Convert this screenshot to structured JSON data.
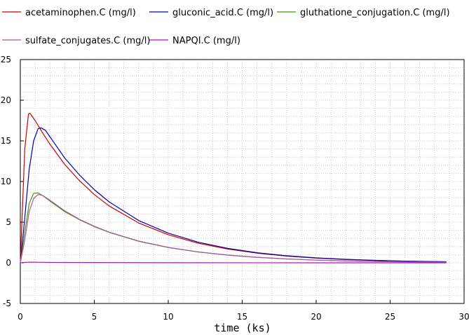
{
  "chart_data": {
    "type": "line",
    "xlabel": "time (ks)",
    "ylabel": "",
    "xlim": [
      0,
      30
    ],
    "ylim": [
      -5,
      25
    ],
    "x_ticks": [
      0,
      5,
      10,
      15,
      20,
      25,
      30
    ],
    "y_ticks": [
      -5,
      0,
      5,
      10,
      15,
      20,
      25
    ],
    "grid": true,
    "legend_position": "top",
    "series": [
      {
        "name": "acetaminophen.C (mg/l)",
        "color": "#cc0000",
        "x": [
          0,
          0.3,
          0.55,
          0.65,
          1.0,
          1.5,
          2,
          3,
          4,
          5,
          6,
          8,
          10,
          12,
          14,
          16,
          18,
          20,
          22,
          24,
          26,
          28.8
        ],
        "y": [
          0,
          14.0,
          18.3,
          18.4,
          17.5,
          16.0,
          14.6,
          12.1,
          10.1,
          8.4,
          7.0,
          4.9,
          3.45,
          2.42,
          1.7,
          1.19,
          0.83,
          0.58,
          0.41,
          0.29,
          0.2,
          0.12
        ]
      },
      {
        "name": "gluconic_acid.C (mg/l)",
        "color": "#0000aa",
        "x": [
          0,
          0.3,
          0.6,
          0.9,
          1.2,
          1.4,
          1.7,
          2,
          3,
          4,
          5,
          6,
          8,
          10,
          12,
          14,
          16,
          18,
          20,
          22,
          24,
          26,
          28.8
        ],
        "y": [
          0,
          5.5,
          11.5,
          15.0,
          16.5,
          16.6,
          16.3,
          15.5,
          12.9,
          10.8,
          9.0,
          7.5,
          5.2,
          3.65,
          2.55,
          1.78,
          1.24,
          0.87,
          0.61,
          0.43,
          0.3,
          0.21,
          0.13
        ]
      },
      {
        "name": "gluthatione_conjugation.C (mg/l)",
        "color": "#449900",
        "x": [
          0,
          0.3,
          0.6,
          0.9,
          1.2,
          1.5,
          2,
          3,
          4,
          5,
          6,
          8,
          10,
          12,
          14,
          16,
          18,
          20,
          22,
          24,
          26,
          28.8
        ],
        "y": [
          0,
          3.8,
          7.3,
          8.55,
          8.6,
          8.3,
          7.6,
          6.3,
          5.3,
          4.45,
          3.75,
          2.65,
          1.88,
          1.33,
          0.95,
          0.67,
          0.47,
          0.33,
          0.23,
          0.16,
          0.11,
          0.07
        ]
      },
      {
        "name": "sulfate_conjugates.C (mg/l)",
        "color": "#aa55aa",
        "x": [
          0,
          0.3,
          0.6,
          0.9,
          1.2,
          1.5,
          2,
          3,
          4,
          5,
          6,
          8,
          10,
          12,
          14,
          16,
          18,
          20,
          22,
          24,
          26,
          28.8
        ],
        "y": [
          0,
          2.8,
          6.3,
          7.9,
          8.4,
          8.3,
          7.7,
          6.4,
          5.35,
          4.5,
          3.78,
          2.68,
          1.9,
          1.35,
          0.96,
          0.68,
          0.48,
          0.34,
          0.24,
          0.17,
          0.12,
          0.08
        ]
      },
      {
        "name": "NAPQI.C (mg/l)",
        "color": "#cc00cc",
        "x": [
          0,
          0.3,
          0.6,
          1,
          2,
          5,
          10,
          15,
          20,
          25,
          28.8
        ],
        "y": [
          0,
          0.05,
          0.08,
          0.07,
          0.05,
          0.03,
          0.01,
          0.005,
          0.003,
          0.001,
          0.0
        ]
      }
    ]
  }
}
